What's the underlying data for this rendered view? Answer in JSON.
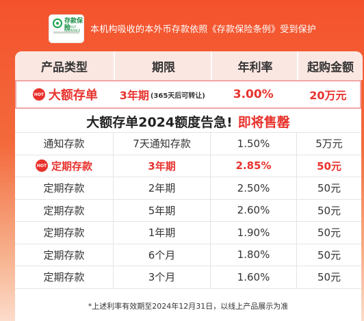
{
  "logo": {
    "name": "存款保险",
    "subtitle": "DEPOSIT INSURANCE"
  },
  "top_notice": "本机构吸收的本外币存款依照《存款保险条例》受到保护",
  "headers": [
    "产品类型",
    "期限",
    "年利率",
    "起购金额"
  ],
  "featured": {
    "badge": "HOT",
    "product": "大额存单",
    "term": "3年期",
    "term_note": "(365天后可转让)",
    "rate": "3.00%",
    "min_amount": "20万元"
  },
  "banner": {
    "text": "大额存单2024额度告急!",
    "highlight": "即将售罄"
  },
  "rows": [
    {
      "product": "通知存款",
      "term": "7天通知存款",
      "rate": "1.50%",
      "min": "5万元"
    },
    {
      "badge": "HOT",
      "product": "定期存款",
      "term": "3年期",
      "rate": "2.85%",
      "min": "50元"
    },
    {
      "product": "定期存款",
      "term": "2年期",
      "rate": "2.50%",
      "min": "50元"
    },
    {
      "product": "定期存款",
      "term": "5年期",
      "rate": "2.60%",
      "min": "50元"
    },
    {
      "product": "定期存款",
      "term": "1年期",
      "rate": "1.90%",
      "min": "50元"
    },
    {
      "product": "定期存款",
      "term": "6个月",
      "rate": "1.80%",
      "min": "50元"
    },
    {
      "product": "定期存款",
      "term": "3个月",
      "rate": "1.60%",
      "min": "50元"
    }
  ],
  "footnote": "*上述利率有效期至2024年12月31日，以线上产品展示为准",
  "colors": {
    "accent": "#e8322d",
    "header_bg": "#fbe7e2",
    "page_bg": "#f4522d"
  }
}
